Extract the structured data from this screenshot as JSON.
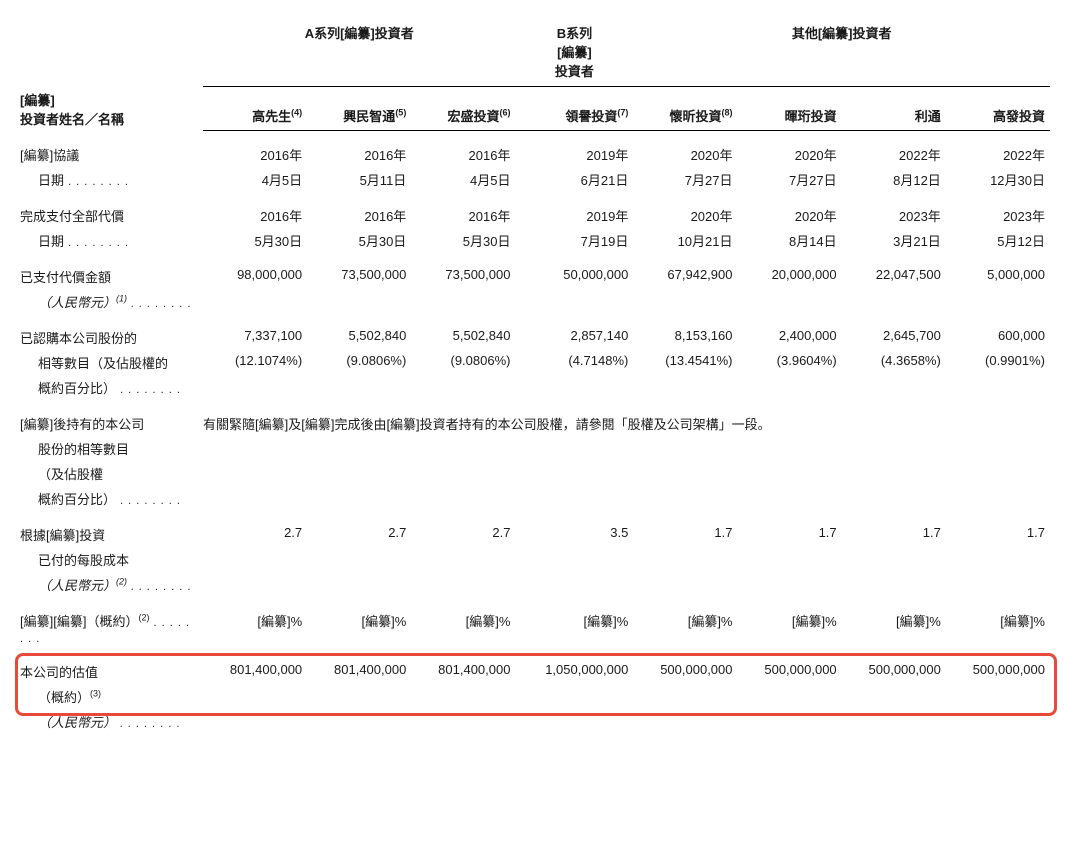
{
  "colors": {
    "highlight_border": "#e8493a",
    "text": "#1a1a1a",
    "background": "#ffffff",
    "border": "#000000"
  },
  "header_groups": {
    "series_a": "A系列[編纂]投資者",
    "series_b_line1": "B系列",
    "series_b_line2": "[編纂]",
    "series_b_line3": "投資者",
    "other": "其他[編纂]投資者"
  },
  "row_header_line1": "[編纂]",
  "row_header_line2": "投資者姓名／名稱",
  "investors": {
    "i1": {
      "name": "高先生",
      "sup": "(4)"
    },
    "i2": {
      "name": "興民智通",
      "sup": "(5)"
    },
    "i3": {
      "name": "宏盛投資",
      "sup": "(6)"
    },
    "i4": {
      "name": "領譽投資",
      "sup": "(7)"
    },
    "i5": {
      "name": "懷昕投資",
      "sup": "(8)"
    },
    "i6": {
      "name": "暉珩投資",
      "sup": ""
    },
    "i7": {
      "name": "利通",
      "sup": ""
    },
    "i8": {
      "name": "高發投資",
      "sup": ""
    }
  },
  "rows": {
    "agreement": {
      "label": "[編纂]協議",
      "sublabel": "日期",
      "vals": {
        "i1": {
          "y": "2016年",
          "d": "4月5日"
        },
        "i2": {
          "y": "2016年",
          "d": "5月11日"
        },
        "i3": {
          "y": "2016年",
          "d": "4月5日"
        },
        "i4": {
          "y": "2019年",
          "d": "6月21日"
        },
        "i5": {
          "y": "2020年",
          "d": "7月27日"
        },
        "i6": {
          "y": "2020年",
          "d": "7月27日"
        },
        "i7": {
          "y": "2022年",
          "d": "8月12日"
        },
        "i8": {
          "y": "2022年",
          "d": "12月30日"
        }
      }
    },
    "payment": {
      "label": "完成支付全部代價",
      "sublabel": "日期",
      "vals": {
        "i1": {
          "y": "2016年",
          "d": "5月30日"
        },
        "i2": {
          "y": "2016年",
          "d": "5月30日"
        },
        "i3": {
          "y": "2016年",
          "d": "5月30日"
        },
        "i4": {
          "y": "2019年",
          "d": "7月19日"
        },
        "i5": {
          "y": "2020年",
          "d": "10月21日"
        },
        "i6": {
          "y": "2020年",
          "d": "8月14日"
        },
        "i7": {
          "y": "2023年",
          "d": "3月21日"
        },
        "i8": {
          "y": "2023年",
          "d": "5月12日"
        }
      }
    },
    "paid_amount": {
      "label": "已支付代價金額",
      "sublabel": "（人民幣元）",
      "sup": "(1)",
      "vals": {
        "i1": "98,000,000",
        "i2": "73,500,000",
        "i3": "73,500,000",
        "i4": "50,000,000",
        "i5": "67,942,900",
        "i6": "20,000,000",
        "i7": "22,047,500",
        "i8": "5,000,000"
      }
    },
    "shares": {
      "label": "已認購本公司股份的",
      "sublabel1": "相等數目（及佔股權的",
      "sublabel2": "概約百分比）",
      "vals": {
        "i1": {
          "n": "7,337,100",
          "p": "(12.1074%)"
        },
        "i2": {
          "n": "5,502,840",
          "p": "(9.0806%)"
        },
        "i3": {
          "n": "5,502,840",
          "p": "(9.0806%)"
        },
        "i4": {
          "n": "2,857,140",
          "p": "(4.7148%)"
        },
        "i5": {
          "n": "8,153,160",
          "p": "(13.4541%)"
        },
        "i6": {
          "n": "2,400,000",
          "p": "(3.9604%)"
        },
        "i7": {
          "n": "2,645,700",
          "p": "(4.3658%)"
        },
        "i8": {
          "n": "600,000",
          "p": "(0.9901%)"
        }
      }
    },
    "post_shares": {
      "label": "[編纂]後持有的本公司",
      "sublabel1": "股份的相等數目",
      "sublabel2": "（及佔股權",
      "sublabel3": "概約百分比）",
      "span_text": "有關緊隨[編纂]及[編纂]完成後由[編纂]投資者持有的本公司股權，請參閱「股權及公司架構」一段。"
    },
    "cost_per_share": {
      "label": "根據[編纂]投資",
      "sublabel1": "已付的每股成本",
      "sublabel2": "（人民幣元）",
      "sup": "(2)",
      "vals": {
        "i1": "2.7",
        "i2": "2.7",
        "i3": "2.7",
        "i4": "3.5",
        "i5": "1.7",
        "i6": "1.7",
        "i7": "1.7",
        "i8": "1.7"
      }
    },
    "approx": {
      "label": "[編纂][編纂]（概約）",
      "sup": "(2)",
      "val": "[編纂]%"
    },
    "valuation": {
      "label": "本公司的估值",
      "sublabel": "（概約）",
      "sup": "(3)",
      "vals": {
        "i1": "801,400,000",
        "i2": "801,400,000",
        "i3": "801,400,000",
        "i4": "1,050,000,000",
        "i5": "500,000,000",
        "i6": "500,000,000",
        "i7": "500,000,000",
        "i8": "500,000,000"
      }
    },
    "rmb": {
      "label": "（人民幣元）"
    }
  }
}
